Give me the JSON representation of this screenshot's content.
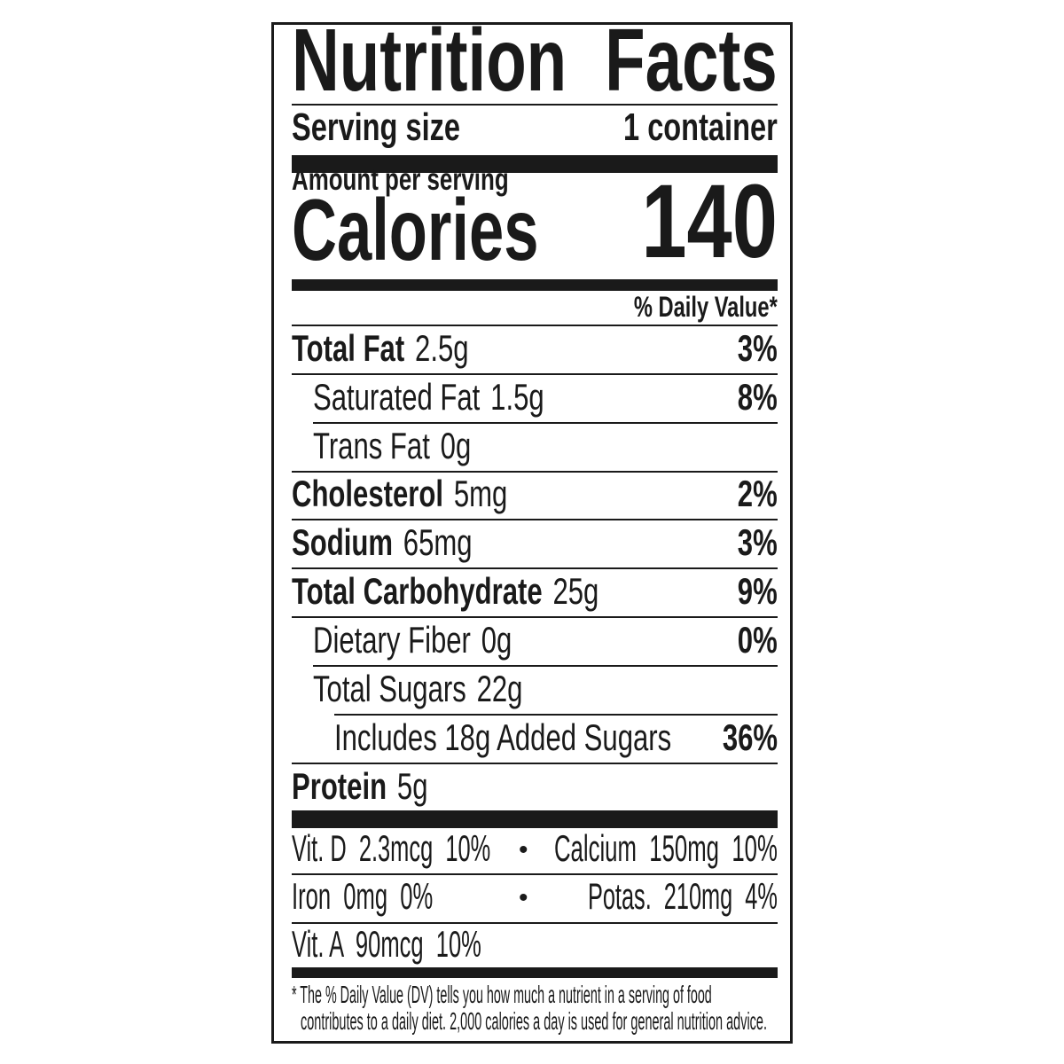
{
  "title": "Nutrition Facts",
  "serving": {
    "label": "Serving size",
    "value": "1 container"
  },
  "amount_per_serving": "Amount per serving",
  "calories": {
    "label": "Calories",
    "value": "140"
  },
  "dv_header": "% Daily Value*",
  "nutrients": [
    {
      "name": "Total Fat",
      "amount": "2.5g",
      "dv": "3%"
    },
    {
      "name": "Saturated Fat",
      "amount": "1.5g",
      "dv": "8%"
    },
    {
      "name": "Trans Fat",
      "amount": "0g",
      "dv": ""
    },
    {
      "name": "Cholesterol",
      "amount": "5mg",
      "dv": "2%"
    },
    {
      "name": "Sodium",
      "amount": "65mg",
      "dv": "3%"
    },
    {
      "name": "Total Carbohydrate",
      "amount": "25g",
      "dv": "9%"
    },
    {
      "name": "Dietary Fiber",
      "amount": "0g",
      "dv": "0%"
    },
    {
      "name": "Total Sugars",
      "amount": "22g",
      "dv": ""
    },
    {
      "name": "Includes 18g Added Sugars",
      "amount": "",
      "dv": "36%"
    },
    {
      "name": "Protein",
      "amount": "5g",
      "dv": ""
    }
  ],
  "vitamins": [
    {
      "left": "Vit. D  2.3mcg  10%",
      "right": "Calcium  150mg  10%"
    },
    {
      "left": "Iron  0mg  0%",
      "right": "Potas.  210mg  4%"
    },
    {
      "left": "Vit. A  90mcg  10%",
      "right": ""
    }
  ],
  "bullet": "•",
  "footnote": {
    "line1": "* The % Daily Value (DV) tells you how much a nutrient in a serving of food",
    "line2": "contributes to a daily diet. 2,000 calories a day is used for general nutrition advice."
  }
}
